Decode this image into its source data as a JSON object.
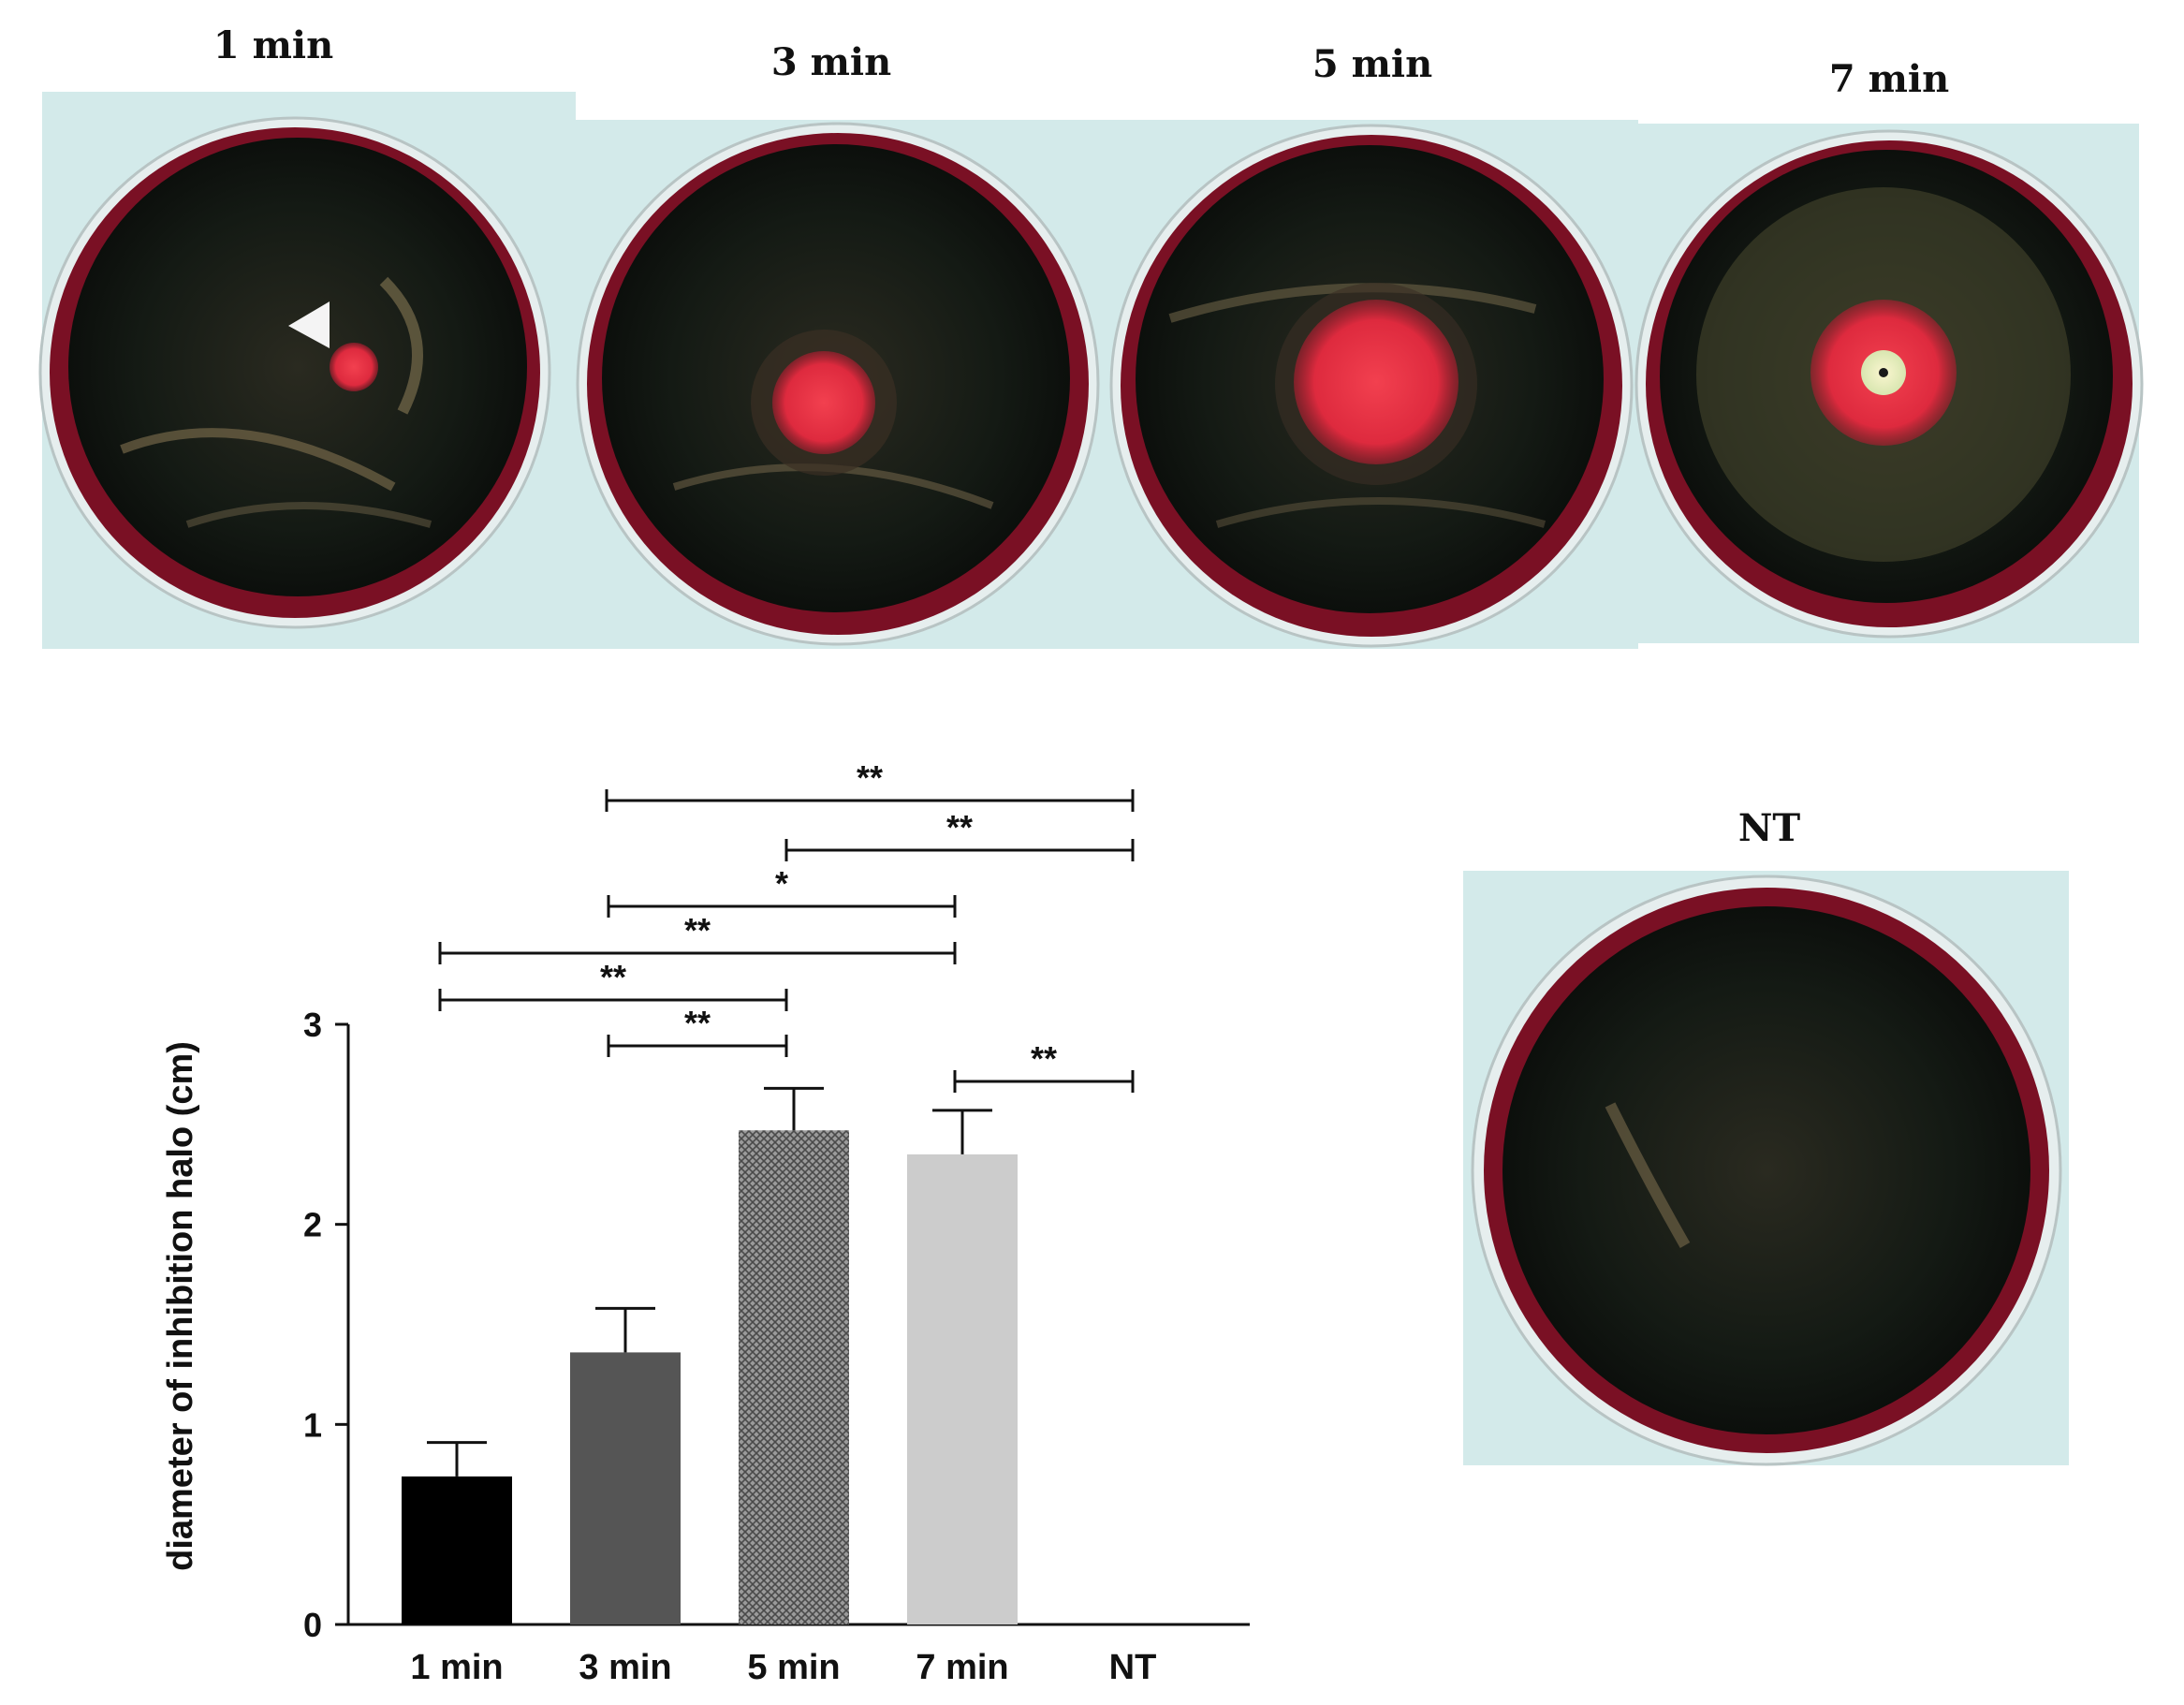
{
  "photos": {
    "panels": [
      {
        "label": "1 min",
        "halo": "small-pink"
      },
      {
        "label": "3 min",
        "halo": "medium-red"
      },
      {
        "label": "5 min",
        "halo": "large-red"
      },
      {
        "label": "7 min",
        "halo": "large-red-with-clear-center"
      }
    ],
    "control": {
      "label": "NT",
      "halo": "none"
    },
    "marker": "white-arrowhead-icon"
  },
  "colors": {
    "background": "#ffffff",
    "photo_backdrop": "#d5ecec",
    "agar_red": "#7a1024",
    "lawn_dark": "#121812",
    "halo_red": "#e8354a",
    "bar_1min": "#000000",
    "bar_3min": "#555555",
    "bar_5min": "#8a8a8a",
    "bar_7min": "#cccccc"
  },
  "chart_data": {
    "type": "bar",
    "categories": [
      "1 min",
      "3 min",
      "5 min",
      "7 min",
      "NT"
    ],
    "values": [
      0.74,
      1.36,
      2.47,
      2.35,
      0
    ],
    "errors": [
      0.17,
      0.22,
      0.21,
      0.22,
      0
    ],
    "bar_fills": [
      "solid-black",
      "solid-dark-gray",
      "crosshatch-gray",
      "solid-light-gray",
      "none"
    ],
    "ylabel": "diameter of inhibition halo (cm)",
    "xlabel": "",
    "title": "",
    "ylim": [
      0,
      3
    ],
    "yticks": [
      0,
      1,
      2,
      3
    ],
    "grid": false,
    "significance": [
      {
        "from": "3 min",
        "to": "NT",
        "label": "**"
      },
      {
        "from": "5 min",
        "to": "NT",
        "label": "**"
      },
      {
        "from": "3 min",
        "to": "7 min",
        "label": "*"
      },
      {
        "from": "1 min",
        "to": "7 min",
        "label": "**"
      },
      {
        "from": "1 min",
        "to": "5 min",
        "label": "**"
      },
      {
        "from": "3 min",
        "to": "5 min",
        "label": "**"
      },
      {
        "from": "7 min",
        "to": "NT",
        "label": "**"
      }
    ]
  }
}
